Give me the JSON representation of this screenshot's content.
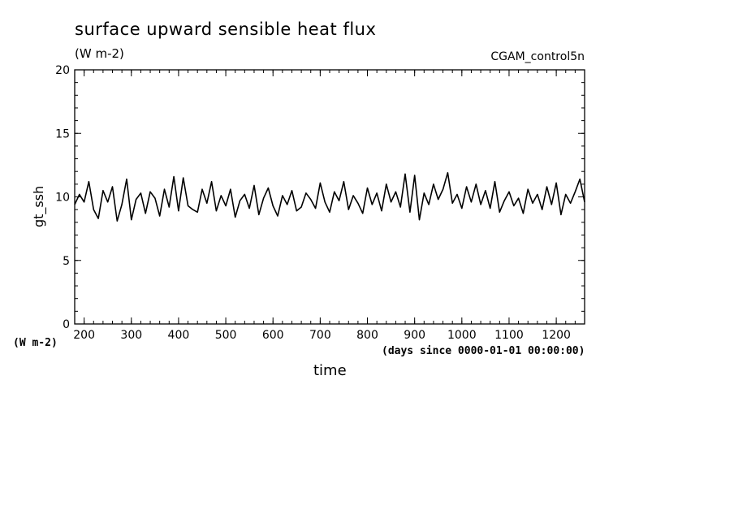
{
  "chart_data": {
    "type": "line",
    "title": "surface upward sensible heat flux",
    "units": "(W m-2)",
    "run_name": "CGAM_control5n",
    "ylabel": "gt_ssh",
    "yunits": "(W m-2)",
    "xlabel": "time",
    "xunits": "(days since 0000-01-01 00:00:00)",
    "xlim": [
      180,
      1260
    ],
    "ylim": [
      0,
      20
    ],
    "xticks": [
      200,
      300,
      400,
      500,
      600,
      700,
      800,
      900,
      1000,
      1100,
      1200
    ],
    "yticks": [
      0,
      5,
      10,
      15,
      20
    ],
    "series": [
      {
        "x": [
          180,
          190,
          200,
          210,
          220,
          230,
          240,
          250,
          260,
          270,
          280,
          290,
          300,
          310,
          320,
          330,
          340,
          350,
          360,
          370,
          380,
          390,
          400,
          410,
          420,
          430,
          440,
          450,
          460,
          470,
          480,
          490,
          500,
          510,
          520,
          530,
          540,
          550,
          560,
          570,
          580,
          590,
          600,
          610,
          620,
          630,
          640,
          650,
          660,
          670,
          680,
          690,
          700,
          710,
          720,
          730,
          740,
          750,
          760,
          770,
          780,
          790,
          800,
          810,
          820,
          830,
          840,
          850,
          860,
          870,
          880,
          890,
          900,
          910,
          920,
          930,
          940,
          950,
          960,
          970,
          980,
          990,
          1000,
          1010,
          1020,
          1030,
          1040,
          1050,
          1060,
          1070,
          1080,
          1090,
          1100,
          1110,
          1120,
          1130,
          1140,
          1150,
          1160,
          1170,
          1180,
          1190,
          1200,
          1210,
          1220,
          1230,
          1240,
          1250,
          1260
        ],
        "y": [
          9.4,
          10.2,
          9.6,
          11.2,
          9.0,
          8.3,
          10.5,
          9.6,
          10.8,
          8.1,
          9.4,
          11.4,
          8.2,
          9.8,
          10.3,
          8.7,
          10.4,
          9.9,
          8.5,
          10.6,
          9.2,
          11.6,
          8.9,
          11.5,
          9.3,
          9.0,
          8.8,
          10.6,
          9.5,
          11.2,
          8.9,
          10.1,
          9.3,
          10.6,
          8.4,
          9.7,
          10.2,
          9.1,
          10.9,
          8.6,
          9.9,
          10.7,
          9.3,
          8.5,
          10.1,
          9.4,
          10.5,
          8.9,
          9.2,
          10.3,
          9.8,
          9.1,
          11.1,
          9.6,
          8.8,
          10.4,
          9.7,
          11.2,
          9.0,
          10.1,
          9.5,
          8.7,
          10.7,
          9.4,
          10.3,
          8.9,
          11.0,
          9.6,
          10.4,
          9.2,
          11.8,
          8.8,
          11.7,
          8.2,
          10.3,
          9.4,
          11.0,
          9.8,
          10.6,
          11.9,
          9.5,
          10.2,
          9.1,
          10.8,
          9.6,
          11.0,
          9.4,
          10.5,
          9.1,
          11.2,
          8.8,
          9.7,
          10.4,
          9.3,
          9.9,
          8.7,
          10.6,
          9.5,
          10.2,
          9.0,
          10.8,
          9.4,
          11.1,
          8.6,
          10.2,
          9.5,
          10.4,
          11.4,
          9.6
        ]
      }
    ]
  }
}
